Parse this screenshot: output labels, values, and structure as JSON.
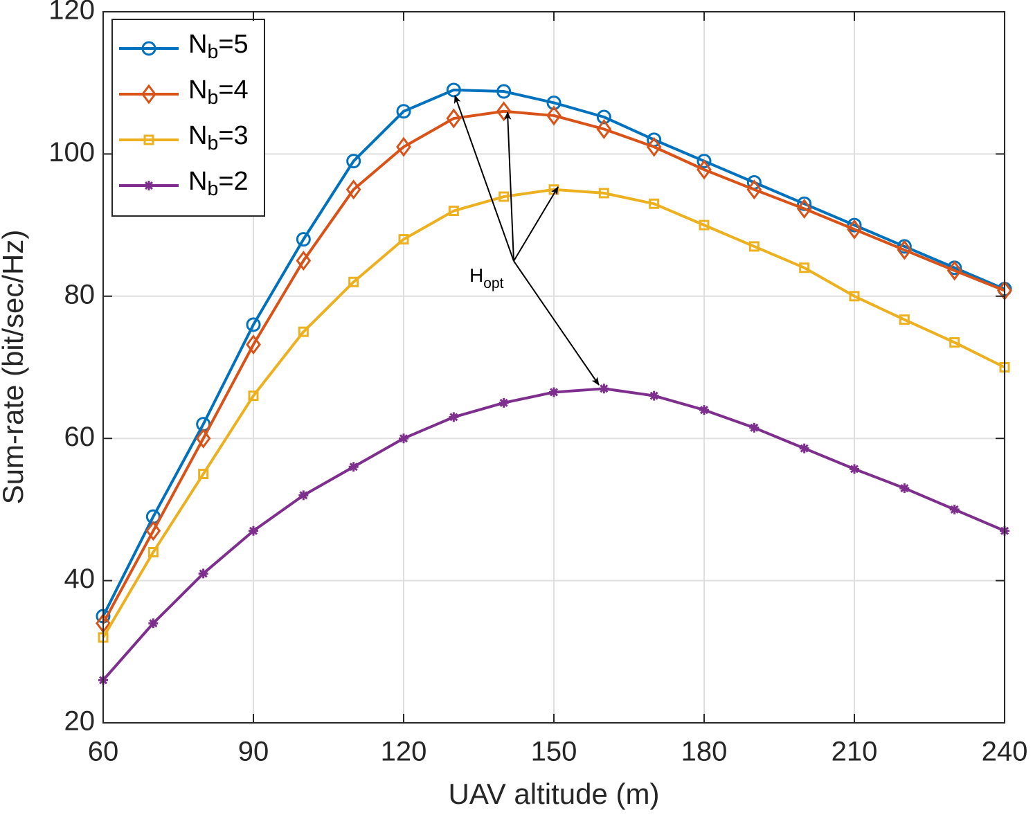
{
  "chart_data": {
    "type": "line",
    "xlabel": "UAV altitude (m)",
    "ylabel": "Sum-rate (bit/sec/Hz)",
    "x": [
      60,
      70,
      80,
      90,
      100,
      110,
      120,
      130,
      140,
      150,
      160,
      170,
      180,
      190,
      200,
      210,
      220,
      230,
      240
    ],
    "series": [
      {
        "name": "Nb=5",
        "color": "#0072BD",
        "marker": "circle",
        "values": [
          35,
          49,
          62,
          76,
          88,
          99,
          106,
          109,
          108.8,
          107.2,
          105.2,
          102,
          99,
          96,
          93,
          90,
          87,
          84,
          81
        ]
      },
      {
        "name": "Nb=4",
        "color": "#D95319",
        "marker": "diamond",
        "values": [
          34,
          47,
          60,
          73.2,
          85,
          95,
          101,
          105,
          106,
          105.4,
          103.5,
          101,
          97.8,
          95,
          92.3,
          89.4,
          86.5,
          83.6,
          80.8
        ]
      },
      {
        "name": "Nb=3",
        "color": "#EDB120",
        "marker": "square",
        "values": [
          32,
          44,
          55,
          66,
          75,
          82,
          88,
          92,
          94,
          95,
          94.5,
          93,
          90,
          87,
          84,
          80,
          76.7,
          73.5,
          70
        ]
      },
      {
        "name": "Nb=2",
        "color": "#7E2F8E",
        "marker": "asterisk",
        "values": [
          26,
          34,
          41,
          47,
          52,
          56,
          60,
          63,
          65,
          66.5,
          67,
          66,
          64,
          61.5,
          58.6,
          55.7,
          53,
          50,
          47
        ]
      }
    ],
    "annotation": "Hopt",
    "xlim": [
      60,
      240
    ],
    "xticks": [
      60,
      90,
      120,
      150,
      180,
      210,
      240
    ],
    "ylim": [
      20,
      120
    ],
    "yticks": [
      20,
      40,
      60,
      80,
      100,
      120
    ],
    "grid": true,
    "legend": "upper left"
  }
}
